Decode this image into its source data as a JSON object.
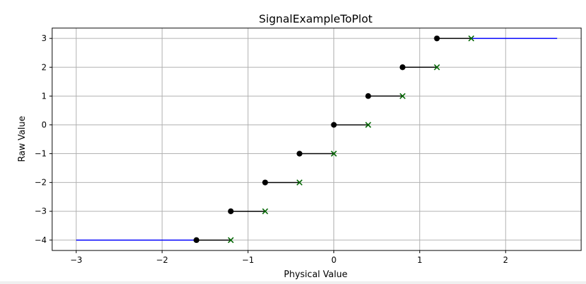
{
  "chart_data": {
    "type": "line",
    "title": "SignalExampleToPlot",
    "xlabel": "Physical Value",
    "ylabel": "Raw Value",
    "xlim": [
      -3.28,
      2.88
    ],
    "ylim": [
      -4.36,
      3.36
    ],
    "x_ticks": [
      -3,
      -2,
      -1,
      0,
      1,
      2
    ],
    "x_tick_labels": [
      "−3",
      "−2",
      "−1",
      "0",
      "1",
      "2"
    ],
    "y_ticks": [
      3,
      2,
      1,
      0,
      -1,
      -2,
      -3,
      -4
    ],
    "y_tick_labels": [
      "3",
      "2",
      "1",
      "0",
      "−1",
      "−2",
      "−3",
      "−4"
    ],
    "grid": true,
    "colors": {
      "step_segment": "#000000",
      "interval_start_marker": "#000000",
      "interval_end_marker": "#006400",
      "saturation_line": "#0000ff",
      "grid": "#b0b0b0"
    },
    "steps": [
      {
        "raw": -4,
        "x_start": -1.6,
        "x_end": -1.2
      },
      {
        "raw": -3,
        "x_start": -1.2,
        "x_end": -0.8
      },
      {
        "raw": -2,
        "x_start": -0.8,
        "x_end": -0.4
      },
      {
        "raw": -1,
        "x_start": -0.4,
        "x_end": 0.0
      },
      {
        "raw": 0,
        "x_start": 0.0,
        "x_end": 0.4
      },
      {
        "raw": 1,
        "x_start": 0.4,
        "x_end": 0.8
      },
      {
        "raw": 2,
        "x_start": 0.8,
        "x_end": 1.2
      },
      {
        "raw": 3,
        "x_start": 1.2,
        "x_end": 1.6
      }
    ],
    "saturation": [
      {
        "raw": -4,
        "x_start": -3.0,
        "x_end": -1.6
      },
      {
        "raw": 3,
        "x_start": 1.6,
        "x_end": 2.6
      }
    ]
  }
}
